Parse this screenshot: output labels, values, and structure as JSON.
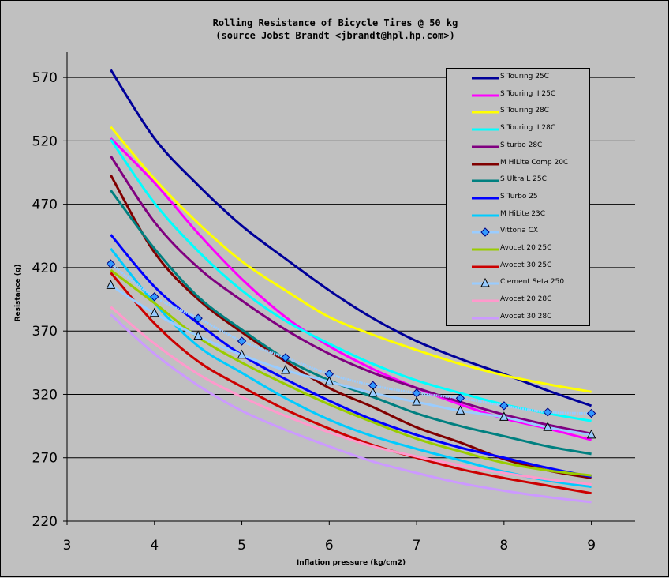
{
  "chart_data": {
    "type": "line",
    "title": "Rolling Resistance of Bicycle Tires @ 50 kg",
    "subtitle": "(source Jobst Brandt <jbrandt@hpl.hp.com>)",
    "xlabel": "Inflation pressure (kg/cm2)",
    "ylabel": "Resistance (g)",
    "xlim": [
      3,
      9.5
    ],
    "ylim": [
      220,
      590
    ],
    "x_ticks": [
      3,
      4,
      5,
      6,
      7,
      8,
      9
    ],
    "y_ticks": [
      220,
      270,
      320,
      370,
      420,
      470,
      520,
      570
    ],
    "grid": "horizontal",
    "legend_position": "top-right",
    "x": [
      3.5,
      4,
      4.5,
      5,
      5.5,
      6,
      6.5,
      7,
      7.5,
      8,
      8.5,
      9
    ],
    "series": [
      {
        "name": "S Touring 25C",
        "color": "#000099",
        "marker": "none",
        "values": [
          576,
          522,
          485,
          453,
          427,
          402,
          380,
          362,
          348,
          336,
          323,
          311
        ]
      },
      {
        "name": "S Touring II 25C",
        "color": "#ff00ff",
        "marker": "none",
        "values": [
          522,
          487,
          447,
          411,
          381,
          358,
          340,
          325,
          312,
          301,
          293,
          284
        ]
      },
      {
        "name": "S Touring 28C",
        "color": "#ffff00",
        "marker": "none",
        "values": [
          531,
          490,
          455,
          425,
          402,
          381,
          367,
          355,
          344,
          335,
          328,
          322
        ]
      },
      {
        "name": "S Touring II 28C",
        "color": "#00ffff",
        "marker": "none",
        "values": [
          521,
          471,
          433,
          402,
          378,
          360,
          344,
          331,
          321,
          312,
          305,
          299
        ]
      },
      {
        "name": "S turbo 28C",
        "color": "#800080",
        "marker": "none",
        "values": [
          508,
          456,
          420,
          394,
          371,
          352,
          337,
          325,
          314,
          304,
          296,
          289
        ]
      },
      {
        "name": "M HiLite Comp 20C",
        "color": "#800000",
        "marker": "none",
        "values": [
          493,
          432,
          395,
          369,
          346,
          325,
          310,
          294,
          282,
          269,
          260,
          254
        ]
      },
      {
        "name": "S Ultra L 25C",
        "color": "#008080",
        "marker": "none",
        "values": [
          481,
          435,
          397,
          371,
          348,
          331,
          318,
          305,
          295,
          287,
          279,
          273
        ]
      },
      {
        "name": "S Turbo 25",
        "color": "#0000ff",
        "marker": "none",
        "values": [
          446,
          405,
          376,
          351,
          332,
          315,
          300,
          288,
          278,
          270,
          262,
          255
        ]
      },
      {
        "name": "M HiLite 23C",
        "color": "#00ccff",
        "marker": "none",
        "values": [
          435,
          392,
          358,
          337,
          317,
          300,
          287,
          277,
          268,
          259,
          252,
          247
        ]
      },
      {
        "name": "Vittoria CX",
        "color": "#99ccff",
        "marker": "diamond",
        "marker_color": "#3399ff",
        "values": [
          423,
          397,
          380,
          362,
          349,
          336,
          327,
          321,
          317,
          311,
          306,
          305
        ]
      },
      {
        "name": "Avocet 20 25C",
        "color": "#99cc00",
        "marker": "none",
        "values": [
          418,
          392,
          365,
          345,
          328,
          312,
          298,
          285,
          275,
          266,
          260,
          256
        ]
      },
      {
        "name": "Avocet 30 25C",
        "color": "#cc0000",
        "marker": "none",
        "values": [
          416,
          376,
          346,
          326,
          308,
          293,
          280,
          270,
          261,
          254,
          248,
          242
        ]
      },
      {
        "name": "Clement Seta 250",
        "color": "#99ccff",
        "marker": "triangle",
        "marker_color": "#99ccff",
        "values": [
          406,
          384,
          366,
          351,
          339,
          330,
          321,
          314,
          307,
          302,
          294,
          288
        ]
      },
      {
        "name": "Avocet 20 28C",
        "color": "#ff99cc",
        "marker": "none",
        "values": [
          389,
          360,
          336,
          318,
          303,
          290,
          279,
          271,
          264,
          258,
          253,
          249
        ]
      },
      {
        "name": "Avocet 30 28C",
        "color": "#cc99ff",
        "marker": "none",
        "values": [
          383,
          352,
          327,
          307,
          292,
          279,
          267,
          258,
          250,
          244,
          239,
          235
        ]
      }
    ]
  }
}
